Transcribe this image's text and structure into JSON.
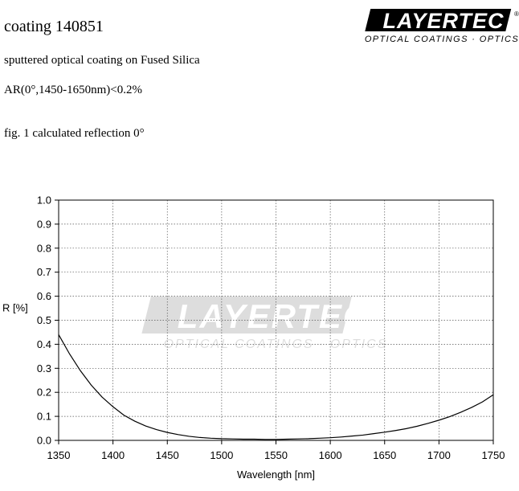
{
  "document": {
    "title": "coating 140851",
    "description": "sputtered optical coating on Fused Silica",
    "spec": "AR(0°,1450-1650nm)<0.2%",
    "figure_caption": "fig. 1 calculated reflection 0°"
  },
  "logo": {
    "wordmark": "LAYERTEC",
    "tagline": "OPTICAL COATINGS · OPTICS",
    "registered": "®"
  },
  "watermark": {
    "wordmark": "LAYERTEC",
    "tagline": "OPTICAL COATINGS · OPTICS"
  },
  "chart_data": {
    "type": "line",
    "title": "",
    "xlabel": "Wavelength [nm]",
    "ylabel": "R [%]",
    "xlim": [
      1350,
      1750
    ],
    "ylim": [
      0,
      1.0
    ],
    "xticks": [
      1350,
      1400,
      1450,
      1500,
      1550,
      1600,
      1650,
      1700,
      1750
    ],
    "yticks": [
      0.0,
      0.1,
      0.2,
      0.3,
      0.4,
      0.5,
      0.6,
      0.7,
      0.8,
      0.9,
      1.0
    ],
    "ytick_labels": [
      "0.0",
      "0.1",
      "0.2",
      "0.3",
      "0.4",
      "0.5",
      "0.6",
      "0.7",
      "0.8",
      "0.9",
      "1.0"
    ],
    "grid": true,
    "line_color": "#000000",
    "series": [
      {
        "x": [
          1350,
          1360,
          1370,
          1380,
          1390,
          1400,
          1410,
          1420,
          1430,
          1440,
          1450,
          1460,
          1470,
          1480,
          1490,
          1500,
          1510,
          1520,
          1530,
          1540,
          1550,
          1560,
          1570,
          1580,
          1590,
          1600,
          1610,
          1620,
          1630,
          1640,
          1650,
          1660,
          1670,
          1680,
          1690,
          1700,
          1710,
          1720,
          1730,
          1740,
          1750
        ],
        "y": [
          0.44,
          0.36,
          0.29,
          0.23,
          0.18,
          0.14,
          0.105,
          0.08,
          0.06,
          0.045,
          0.033,
          0.024,
          0.017,
          0.012,
          0.009,
          0.007,
          0.006,
          0.005,
          0.005,
          0.004,
          0.004,
          0.005,
          0.006,
          0.007,
          0.009,
          0.011,
          0.014,
          0.018,
          0.022,
          0.028,
          0.034,
          0.041,
          0.049,
          0.059,
          0.071,
          0.084,
          0.099,
          0.117,
          0.137,
          0.16,
          0.19
        ]
      }
    ]
  }
}
